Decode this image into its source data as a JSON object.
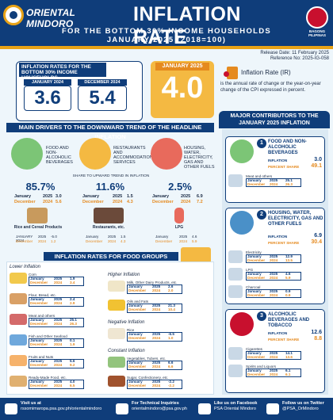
{
  "header": {
    "region": "ORIENTAL MINDORO",
    "title": "INFLATION RATE",
    "subtitle_line1": "FOR THE BOTTOM 30% INCOME HOUSEHOLDS",
    "subtitle_line2": "JANUARY 2025 (2018=100)",
    "badge_label": "BAGONG PILIPINAS"
  },
  "release": {
    "release_date": "Release Date: 11 February 2025",
    "reference_no": "Reference No: 2025-IG-058"
  },
  "kpi": {
    "box_title": "INFLATION RATES FOR THE BOTTOM 30% INCOME HOUSEHOLDS",
    "jan2024_label": "JANUARY 2024",
    "jan2024_value": "3.6",
    "dec2024_label": "DECEMBER 2024",
    "dec2024_value": "5.4",
    "jan2025_label": "JANUARY 2025",
    "jan2025_value": "4.0"
  },
  "definition": {
    "term": "Inflation Rate (IR)",
    "text": "is the annual rate of change or the year-on-year change of the CPI expressed in percent."
  },
  "drivers": {
    "banner": "MAIN DRIVERS TO THE DOWNWARD TREND OF THE HEADLINE INFLATION",
    "share_note": "SHARE TO UPWARD TREND IN INFLATION",
    "items": [
      {
        "label": "FOOD AND NON-ALCOHOLIC BEVERAGES",
        "share": "85.7%",
        "jan_label": "January",
        "jan_year": "2025",
        "jan_val": "3.0",
        "dec_label": "December",
        "dec_year": "2024",
        "dec_val": "5.6",
        "product": "Rice and Cereal Products",
        "p_jan_year": "2025",
        "p_jan_val": "-5.0",
        "p_dec_year": "2024",
        "p_dec_val": "1.2"
      },
      {
        "label": "RESTAURANTS AND ACCOMMODATION SERVICES",
        "share": "11.6%",
        "jan_label": "January",
        "jan_year": "2025",
        "jan_val": "1.5",
        "dec_label": "December",
        "dec_year": "2024",
        "dec_val": "4.3",
        "product": "Restaurants, etc.",
        "p_jan_year": "2025",
        "p_jan_val": "1.5",
        "p_dec_year": "2024",
        "p_dec_val": "4.3"
      },
      {
        "label": "HOUSING, WATER, ELECTRICITY, GAS AND OTHER FUELS",
        "share": "2.5%",
        "jan_label": "January",
        "jan_year": "2025",
        "jan_val": "6.9",
        "dec_label": "December",
        "dec_year": "2024",
        "dec_val": "7.2",
        "product": "LPG",
        "p_jan_year": "2025",
        "p_jan_val": "4.6",
        "p_dec_year": "2024",
        "p_dec_val": "5.9"
      }
    ]
  },
  "food_groups": {
    "banner": "INFLATION RATES FOR FOOD GROUPS",
    "left_groups": [
      {
        "name": "Lower Inflation",
        "items": [
          {
            "label": "Corn",
            "jan_year": "2025",
            "jan_val": "1.9",
            "dec_year": "2024",
            "dec_val": "3.4"
          },
          {
            "label": "Flour, Bread, etc.",
            "jan_year": "2025",
            "jan_val": "2.4",
            "dec_year": "2024",
            "dec_val": "2.9"
          },
          {
            "label": "Meat and others",
            "jan_year": "2025",
            "jan_val": "25.1",
            "dec_year": "2024",
            "dec_val": "26.3"
          },
          {
            "label": "Fish and Other Seafood",
            "jan_year": "2025",
            "jan_val": "0.1",
            "dec_year": "2024",
            "dec_val": "1.9"
          },
          {
            "label": "Fruits and Nuts",
            "jan_year": "2025",
            "jan_val": "5.6",
            "dec_year": "2024",
            "dec_val": "9.2"
          },
          {
            "label": "Ready-Made Food, etc.",
            "jan_year": "2025",
            "jan_val": "4.0",
            "dec_year": "2024",
            "dec_val": "6.5"
          }
        ]
      }
    ],
    "right_groups": [
      {
        "name": "Higher Inflation",
        "items": [
          {
            "label": "Milk, Other Dairy Products, etc.",
            "jan_year": "2025",
            "jan_val": "2.6",
            "dec_year": "2024",
            "dec_val": "2.0"
          },
          {
            "label": "Oils and Fats",
            "jan_year": "2025",
            "jan_val": "21.3",
            "dec_year": "2024",
            "dec_val": "10.4"
          }
        ]
      },
      {
        "name": "Negative Inflation",
        "items": [
          {
            "label": "Rice",
            "jan_year": "2025",
            "jan_val": "-6.5",
            "dec_year": "2024",
            "dec_val": "1.0"
          }
        ]
      },
      {
        "name": "Constant Inflation",
        "items": [
          {
            "label": "Vegetables, Tubers, etc.",
            "jan_year": "2025",
            "jan_val": "6.6",
            "dec_year": "2024",
            "dec_val": "6.6"
          },
          {
            "label": "Sugar, Confectionery, etc.",
            "jan_year": "2025",
            "jan_val": "-2.2",
            "dec_year": "2024",
            "dec_val": "-2.2"
          }
        ]
      }
    ]
  },
  "contributors": {
    "banner": "MAJOR CONTRIBUTORS TO THE JANUARY 2025 INFLATION",
    "inflation_label": "INFLATION",
    "percent_share_label": "PERCENT SHARE",
    "cards": [
      {
        "num": "1",
        "title": "FOOD AND NON-ALCOHOLIC BEVERAGES",
        "inflation": "3.0",
        "share": "49.1",
        "subs": [
          {
            "label": "Meat and others",
            "jan_year": "2025",
            "jan_val": "25.1",
            "dec_year": "2024",
            "dec_val": "26.3"
          }
        ]
      },
      {
        "num": "2",
        "title": "HOUSING, WATER, ELECTRICITY, GAS AND OTHER FUELS",
        "inflation": "6.9",
        "share": "30.4",
        "subs": [
          {
            "label": "Electricity",
            "jan_year": "2025",
            "jan_val": "12.9",
            "dec_year": "2024",
            "dec_val": "13.5"
          },
          {
            "label": "LPG",
            "jan_year": "2025",
            "jan_val": "4.6",
            "dec_year": "2024",
            "dec_val": "5.9"
          },
          {
            "label": "Charcoal",
            "jan_year": "2025",
            "jan_val": "0.9",
            "dec_year": "2024",
            "dec_val": "0.9"
          }
        ]
      },
      {
        "num": "3",
        "title": "ALCOHOLIC BEVERAGES AND TOBACCO",
        "inflation": "12.6",
        "share": "8.8",
        "subs": [
          {
            "label": "Cigarettes",
            "jan_year": "2025",
            "jan_val": "14.1",
            "dec_year": "2024",
            "dec_val": "13.6"
          },
          {
            "label": "Spirits and Liquors",
            "jan_year": "2025",
            "jan_val": "6.1",
            "dec_year": "2024",
            "dec_val": "6.1"
          }
        ]
      }
    ],
    "jan_label": "January",
    "dec_label": "December"
  },
  "footer": {
    "visit_title": "Visit us at",
    "visit_url": "rssomimaropa.psa.gov.ph/orientalmindoro",
    "tech_title": "For Technical Inquiries",
    "tech_email": "orientalmindoro@psa.gov.ph",
    "fb_title": "Like us on Facebook",
    "fb_name": "PSA Oriental Mindoro",
    "tw_title": "Follow us on Twitter",
    "tw_handle": "@PSA_OrMindoro"
  },
  "colors": {
    "navy": "#0f3d7a",
    "orange": "#e58a1f",
    "gold": "#f4b942",
    "background": "#eef6fb"
  }
}
